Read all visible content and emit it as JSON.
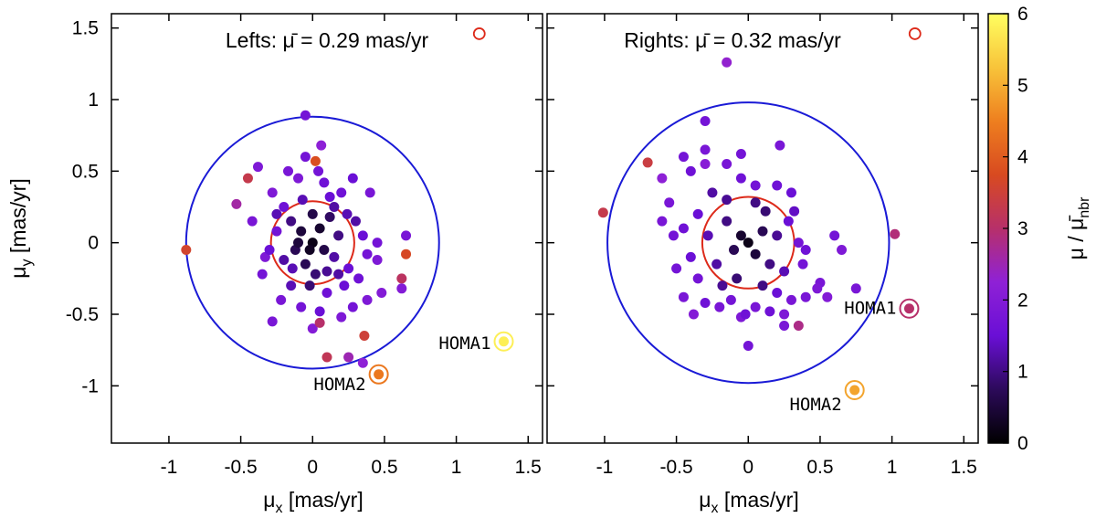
{
  "chart_data": {
    "type": "scatter",
    "panels": [
      {
        "id": "lefts",
        "title": "Lefts: μ̄ = 0.29 mas/yr",
        "xlabel": "μ",
        "xlabel_sub": "x",
        "xlabel_unit": " [mas/yr]",
        "ylabel": "μ",
        "ylabel_sub": "y",
        "ylabel_unit": " [mas/yr]",
        "xlim": [
          -1.4,
          1.6
        ],
        "ylim": [
          -1.4,
          1.6
        ],
        "xticks": [
          -1,
          -0.5,
          0,
          0.5,
          1,
          1.5
        ],
        "xtick_labels": [
          "-1",
          "-0.5",
          "0",
          "0.5",
          "1",
          "1.5"
        ],
        "yticks": [
          -1,
          -0.5,
          0,
          0.5,
          1,
          1.5
        ],
        "ytick_labels": [
          "-1",
          "-0.5",
          "0",
          "0.5",
          "1",
          "1.5"
        ],
        "circles": [
          {
            "name": "mean-circle",
            "cx": 0,
            "cy": 0,
            "r": 0.29,
            "color": "#dd2a1a"
          },
          {
            "name": "three-sigma-circle",
            "cx": 0,
            "cy": 0,
            "r": 0.88,
            "color": "#1a1ad6"
          }
        ],
        "legend_marker": {
          "x": 1.16,
          "y": 1.46,
          "color": "#dd2a1a"
        },
        "points": [
          [
            -0.88,
            -0.05,
            3.6
          ],
          [
            -0.53,
            0.27,
            2.6
          ],
          [
            -0.45,
            0.45,
            3.3
          ],
          [
            -0.38,
            0.53,
            1.9
          ],
          [
            -0.42,
            0.15,
            1.8
          ],
          [
            -0.33,
            -0.1,
            1.9
          ],
          [
            -0.3,
            -0.05,
            1.5
          ],
          [
            -0.25,
            0.08,
            1.7
          ],
          [
            -0.28,
            0.35,
            1.9
          ],
          [
            -0.2,
            0.25,
            1.6
          ],
          [
            -0.17,
            0.5,
            1.8
          ],
          [
            -0.14,
            -0.18,
            1.3
          ],
          [
            -0.1,
            0.45,
            1.9
          ],
          [
            -0.05,
            0.89,
            1.7
          ],
          [
            -0.07,
            0.3,
            1.3
          ],
          [
            0.04,
            0.5,
            1.7
          ],
          [
            0.06,
            0.68,
            2.2
          ],
          [
            0.08,
            0.42,
            1.6
          ],
          [
            0.12,
            0.32,
            1.5
          ],
          [
            0.2,
            0.35,
            1.6
          ],
          [
            0.28,
            0.45,
            1.5
          ],
          [
            0.24,
            0.2,
            1.3
          ],
          [
            0.18,
            0.05,
            1.0
          ],
          [
            0.15,
            -0.1,
            1.2
          ],
          [
            0.1,
            -0.2,
            1.1
          ],
          [
            0.02,
            -0.22,
            0.9
          ],
          [
            -0.05,
            -0.15,
            0.7
          ],
          [
            -0.12,
            -0.05,
            0.7
          ],
          [
            -0.08,
            0.08,
            0.5
          ],
          [
            0.0,
            0.0,
            0.2
          ],
          [
            0.05,
            0.1,
            0.4
          ],
          [
            -0.02,
            -0.05,
            0.3
          ],
          [
            0.08,
            -0.05,
            0.6
          ],
          [
            -0.15,
            0.15,
            1.0
          ],
          [
            -0.2,
            -0.12,
            1.2
          ],
          [
            0.25,
            -0.18,
            1.5
          ],
          [
            0.32,
            -0.25,
            1.6
          ],
          [
            0.35,
            0.05,
            1.5
          ],
          [
            0.38,
            -0.08,
            1.7
          ],
          [
            0.45,
            -0.12,
            1.9
          ],
          [
            0.48,
            -0.35,
            2.0
          ],
          [
            0.38,
            -0.4,
            1.9
          ],
          [
            0.28,
            -0.45,
            1.7
          ],
          [
            0.2,
            -0.52,
            1.9
          ],
          [
            0.05,
            -0.48,
            1.5
          ],
          [
            -0.08,
            -0.45,
            1.7
          ],
          [
            -0.22,
            -0.4,
            1.8
          ],
          [
            -0.28,
            -0.55,
            1.8
          ],
          [
            0.0,
            -0.6,
            2.0
          ],
          [
            0.05,
            -0.56,
            3.0
          ],
          [
            0.1,
            -0.35,
            1.6
          ],
          [
            0.36,
            -0.65,
            3.5
          ],
          [
            0.25,
            -0.8,
            2.5
          ],
          [
            0.35,
            -0.84,
            2.2
          ],
          [
            0.1,
            -0.8,
            3.2
          ],
          [
            0.62,
            -0.25,
            3.1
          ],
          [
            0.65,
            -0.08,
            3.7
          ],
          [
            0.62,
            -0.32,
            2.0
          ],
          [
            0.65,
            0.05,
            1.8
          ],
          [
            0.4,
            0.35,
            1.8
          ],
          [
            0.45,
            0.0,
            1.7
          ],
          [
            0.3,
            0.15,
            1.2
          ],
          [
            0.22,
            -0.3,
            1.5
          ],
          [
            -0.35,
            -0.22,
            1.7
          ],
          [
            -0.15,
            -0.3,
            1.3
          ],
          [
            -0.05,
            0.6,
            1.7
          ],
          [
            -0.1,
            0.0,
            0.5
          ],
          [
            0.12,
            0.18,
            0.8
          ],
          [
            -0.25,
            0.2,
            1.3
          ],
          [
            0.15,
            0.25,
            1.2
          ],
          [
            0.02,
            0.57,
            3.8
          ],
          [
            -0.02,
            -0.3,
            0.9
          ],
          [
            0.0,
            0.2,
            0.6
          ],
          [
            0.18,
            -0.22,
            1.2
          ]
        ],
        "highlighted": [
          {
            "label": "HOMA1",
            "x": 1.33,
            "y": -0.69,
            "value": 5.8
          },
          {
            "label": "HOMA2",
            "x": 0.46,
            "y": -0.92,
            "value": 4.4
          }
        ]
      },
      {
        "id": "rights",
        "title": "Rights: μ̄ = 0.32 mas/yr",
        "xlabel": "μ",
        "xlabel_sub": "x",
        "xlabel_unit": " [mas/yr]",
        "xlim": [
          -1.4,
          1.6
        ],
        "ylim": [
          -1.4,
          1.6
        ],
        "xticks": [
          -1,
          -0.5,
          0,
          0.5,
          1,
          1.5
        ],
        "xtick_labels": [
          "-1",
          "-0.5",
          "0",
          "0.5",
          "1",
          "1.5"
        ],
        "circles": [
          {
            "name": "mean-circle",
            "cx": 0,
            "cy": 0,
            "r": 0.32,
            "color": "#dd2a1a"
          },
          {
            "name": "three-sigma-circle",
            "cx": 0,
            "cy": 0,
            "r": 0.98,
            "color": "#1a1ad6"
          }
        ],
        "legend_marker": {
          "x": 1.16,
          "y": 1.46,
          "color": "#dd2a1a"
        },
        "points": [
          [
            -1.01,
            0.21,
            3.3
          ],
          [
            -0.7,
            0.56,
            3.4
          ],
          [
            -0.6,
            0.45,
            2.2
          ],
          [
            -0.55,
            0.28,
            1.8
          ],
          [
            -0.45,
            0.6,
            1.7
          ],
          [
            -0.4,
            0.5,
            1.6
          ],
          [
            -0.3,
            0.55,
            2.1
          ],
          [
            -0.3,
            0.85,
            1.7
          ],
          [
            -0.15,
            1.26,
            2.3
          ],
          [
            -0.15,
            0.55,
            1.8
          ],
          [
            -0.05,
            0.45,
            1.6
          ],
          [
            0.05,
            0.4,
            1.7
          ],
          [
            0.22,
            0.68,
            1.8
          ],
          [
            0.2,
            0.4,
            1.6
          ],
          [
            0.3,
            0.35,
            1.5
          ],
          [
            0.28,
            0.15,
            1.5
          ],
          [
            0.35,
            0.0,
            1.7
          ],
          [
            0.4,
            -0.05,
            1.6
          ],
          [
            0.38,
            -0.15,
            1.7
          ],
          [
            0.5,
            -0.28,
            1.8
          ],
          [
            0.48,
            -0.32,
            1.9
          ],
          [
            0.55,
            -0.38,
            2.0
          ],
          [
            0.4,
            -0.38,
            1.8
          ],
          [
            0.3,
            -0.4,
            1.8
          ],
          [
            0.25,
            -0.5,
            1.9
          ],
          [
            0.15,
            -0.48,
            1.6
          ],
          [
            0.05,
            -0.45,
            1.8
          ],
          [
            -0.05,
            -0.52,
            1.9
          ],
          [
            -0.12,
            -0.4,
            1.7
          ],
          [
            -0.2,
            -0.45,
            1.8
          ],
          [
            -0.3,
            -0.42,
            1.6
          ],
          [
            -0.38,
            -0.5,
            2.0
          ],
          [
            -0.45,
            -0.38,
            1.8
          ],
          [
            -0.35,
            -0.25,
            1.7
          ],
          [
            -0.5,
            -0.18,
            1.7
          ],
          [
            -0.6,
            0.15,
            1.8
          ],
          [
            -0.52,
            0.05,
            1.7
          ],
          [
            -0.45,
            0.1,
            1.6
          ],
          [
            -0.4,
            -0.1,
            1.5
          ],
          [
            -0.35,
            0.2,
            1.5
          ],
          [
            -0.28,
            0.05,
            1.3
          ],
          [
            -0.22,
            -0.15,
            1.2
          ],
          [
            -0.15,
            0.15,
            1.0
          ],
          [
            -0.1,
            -0.05,
            0.7
          ],
          [
            -0.05,
            0.05,
            0.4
          ],
          [
            0.0,
            0.0,
            0.2
          ],
          [
            0.05,
            -0.08,
            0.5
          ],
          [
            0.1,
            0.08,
            0.7
          ],
          [
            0.15,
            -0.15,
            1.0
          ],
          [
            0.2,
            0.05,
            1.1
          ],
          [
            0.25,
            -0.2,
            1.3
          ],
          [
            -0.15,
            0.3,
            1.1
          ],
          [
            0.05,
            0.28,
            1.0
          ],
          [
            -0.08,
            -0.25,
            0.9
          ],
          [
            -0.25,
            0.35,
            1.2
          ],
          [
            0.35,
            -0.58,
            2.8
          ],
          [
            0.0,
            -0.72,
            1.7
          ],
          [
            -0.02,
            -0.5,
            1.6
          ],
          [
            0.25,
            -0.58,
            1.8
          ],
          [
            0.6,
            0.05,
            1.7
          ],
          [
            0.65,
            -0.05,
            1.9
          ],
          [
            0.75,
            -0.32,
            1.8
          ],
          [
            1.02,
            0.06,
            2.9
          ],
          [
            0.2,
            -0.35,
            1.5
          ],
          [
            -0.18,
            -0.3,
            1.1
          ],
          [
            0.12,
            0.22,
            0.9
          ],
          [
            -0.3,
            0.65,
            1.8
          ],
          [
            0.1,
            -0.3,
            1.0
          ],
          [
            0.32,
            0.22,
            1.4
          ],
          [
            -0.05,
            0.62,
            1.7
          ]
        ],
        "highlighted": [
          {
            "label": "HOMA1",
            "x": 1.12,
            "y": -0.46,
            "value": 3.0
          },
          {
            "label": "HOMA2",
            "x": 0.74,
            "y": -1.03,
            "value": 4.9
          }
        ]
      }
    ],
    "colorbar": {
      "label": "μ / μ̄",
      "label_sub": "nbr",
      "range": [
        0,
        6
      ],
      "ticks": [
        0,
        1,
        2,
        3,
        4,
        5,
        6
      ],
      "tick_labels": [
        "0",
        "1",
        "2",
        "3",
        "4",
        "5",
        "6"
      ]
    },
    "colormap": [
      "#000000",
      "#2c0a5a",
      "#6a0fd6",
      "#8f21d6",
      "#b7306a",
      "#d84a20",
      "#ee7f1f",
      "#f8c43a",
      "#ffff60"
    ]
  }
}
